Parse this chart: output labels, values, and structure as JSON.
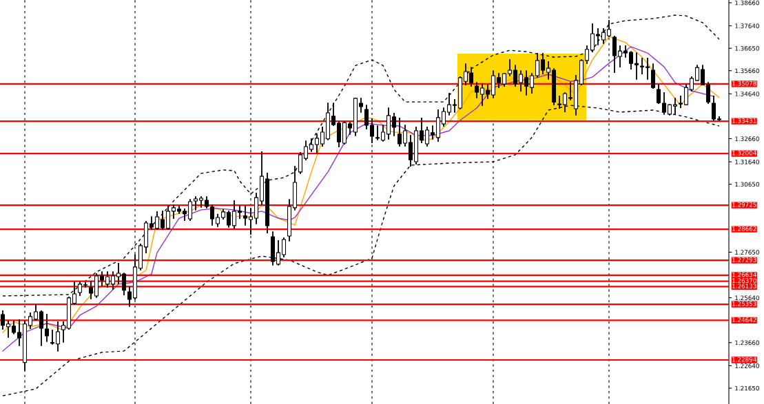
{
  "chart_data": {
    "type": "candlestick",
    "categories": [
      null,
      null,
      null,
      null,
      null,
      null,
      null,
      null,
      null,
      null,
      null,
      null,
      null,
      null,
      null,
      null,
      null,
      null,
      null,
      null,
      null,
      null,
      null,
      null,
      null,
      null,
      null,
      null,
      null,
      null,
      null,
      null,
      null,
      null,
      null,
      null,
      null,
      null,
      null,
      null,
      null,
      null,
      null,
      null,
      null,
      null,
      null,
      null,
      null,
      null,
      null,
      null,
      null,
      null,
      null,
      null,
      null,
      null,
      null,
      null,
      null,
      null,
      null,
      null,
      null,
      null,
      null,
      null,
      null,
      null,
      null,
      null,
      null,
      null,
      null,
      null,
      null,
      null,
      null,
      null,
      null,
      null,
      null,
      null,
      null,
      null,
      null,
      null,
      null,
      null,
      null,
      null,
      null,
      null,
      null,
      null,
      null,
      null,
      null,
      null,
      null,
      null,
      null,
      null,
      null,
      null,
      null,
      null,
      null,
      null,
      null,
      null,
      null,
      null,
      null,
      null,
      null,
      null,
      null,
      null,
      null,
      null,
      null,
      null,
      null,
      null,
      null,
      null,
      null,
      null,
      null
    ],
    "ohlc": [
      [
        1.249,
        1.2505,
        1.2426,
        1.2442
      ],
      [
        1.2436,
        1.246,
        1.239,
        1.2448
      ],
      [
        1.2439,
        1.246,
        1.2405,
        1.2411
      ],
      [
        1.2411,
        1.2466,
        1.2354,
        1.2387
      ],
      [
        1.2278,
        1.246,
        1.2244,
        1.2448
      ],
      [
        1.2442,
        1.2496,
        1.2429,
        1.2481
      ],
      [
        1.2469,
        1.2533,
        1.2466,
        1.2502
      ],
      [
        1.2502,
        1.2505,
        1.2354,
        1.2429
      ],
      [
        1.2426,
        1.249,
        1.2372,
        1.2396
      ],
      [
        1.2366,
        1.242,
        1.236,
        1.2363
      ],
      [
        1.236,
        1.2457,
        1.2329,
        1.2414
      ],
      [
        1.2423,
        1.2457,
        1.2369,
        1.2442
      ],
      [
        1.2429,
        1.2566,
        1.2426,
        1.2563
      ],
      [
        1.2539,
        1.2633,
        1.2536,
        1.2581
      ],
      [
        1.2587,
        1.2633,
        1.2575,
        1.2624
      ],
      [
        1.2621,
        1.263,
        1.2612,
        1.262
      ],
      [
        1.2609,
        1.2636,
        1.256,
        1.2584
      ],
      [
        1.2572,
        1.2669,
        1.2566,
        1.266
      ],
      [
        1.266,
        1.2678,
        1.2618,
        1.2642
      ],
      [
        1.2624,
        1.2678,
        1.2612,
        1.2657
      ],
      [
        1.2624,
        1.2678,
        1.2603,
        1.266
      ],
      [
        1.2657,
        1.2715,
        1.2627,
        1.2672
      ],
      [
        1.2669,
        1.2672,
        1.2578,
        1.2597
      ],
      [
        1.259,
        1.2612,
        1.2527,
        1.2557
      ],
      [
        1.2563,
        1.2754,
        1.2557,
        1.27
      ],
      [
        1.2694,
        1.28,
        1.2688,
        1.2794
      ],
      [
        1.2788,
        1.29,
        1.2763,
        1.2894
      ],
      [
        1.2891,
        1.2921,
        1.2867,
        1.2876
      ],
      [
        1.287,
        1.2943,
        1.2867,
        1.2921
      ],
      [
        1.2909,
        1.2946,
        1.2867,
        1.2873
      ],
      [
        1.287,
        1.2967,
        1.2867,
        1.2946
      ],
      [
        1.2946,
        1.2973,
        1.2915,
        1.2961
      ],
      [
        1.2955,
        1.2967,
        1.2937,
        1.2946
      ],
      [
        1.2946,
        1.2955,
        1.2906,
        1.2934
      ],
      [
        1.2912,
        1.2997,
        1.2906,
        1.2988
      ],
      [
        1.2991,
        1.3009,
        1.2952,
        1.3
      ],
      [
        1.2994,
        1.3009,
        1.2964,
        1.3003
      ],
      [
        1.2994,
        1.3009,
        1.2961,
        1.2967
      ],
      [
        1.2964,
        1.2973,
        1.2885,
        1.2912
      ],
      [
        1.2891,
        1.2931,
        1.2879,
        1.2918
      ],
      [
        1.2918,
        1.2952,
        1.2912,
        1.2943
      ],
      [
        1.294,
        1.2946,
        1.2876,
        1.2885
      ],
      [
        1.2882,
        1.2991,
        1.287,
        1.2946
      ],
      [
        1.2946,
        1.2967,
        1.2915,
        1.294
      ],
      [
        1.2925,
        1.2967,
        1.2885,
        1.2915
      ],
      [
        1.2909,
        1.2958,
        1.2845,
        1.2921
      ],
      [
        1.2915,
        1.3025,
        1.2891,
        1.3006
      ],
      [
        1.2991,
        1.3207,
        1.2976,
        1.31
      ],
      [
        1.3088,
        1.3113,
        1.2851,
        1.2882
      ],
      [
        1.2833,
        1.2854,
        1.2709,
        1.2724
      ],
      [
        1.2712,
        1.2815,
        1.2709,
        1.2763
      ],
      [
        1.2754,
        1.2827,
        1.2745,
        1.2821
      ],
      [
        1.2836,
        1.2997,
        1.2815,
        1.2967
      ],
      [
        1.2961,
        1.3143,
        1.2952,
        1.3073
      ],
      [
        1.3119,
        1.3204,
        1.3113,
        1.3195
      ],
      [
        1.3179,
        1.3255,
        1.3173,
        1.3231
      ],
      [
        1.3219,
        1.3265,
        1.321,
        1.324
      ],
      [
        1.324,
        1.3286,
        1.3204,
        1.3268
      ],
      [
        1.3243,
        1.3316,
        1.3234,
        1.3295
      ],
      [
        1.3265,
        1.3422,
        1.3262,
        1.338
      ],
      [
        1.3365,
        1.3422,
        1.3325,
        1.3328
      ],
      [
        1.3334,
        1.334,
        1.3231,
        1.3252
      ],
      [
        1.3246,
        1.334,
        1.3243,
        1.3337
      ],
      [
        1.3331,
        1.3337,
        1.3286,
        1.3313
      ],
      [
        1.3295,
        1.3444,
        1.328,
        1.3444
      ],
      [
        1.3422,
        1.3444,
        1.3383,
        1.3407
      ],
      [
        1.3395,
        1.3413,
        1.331,
        1.3325
      ],
      [
        1.3325,
        1.3353,
        1.3249,
        1.3277
      ],
      [
        1.3271,
        1.3322,
        1.3262,
        1.3268
      ],
      [
        1.3259,
        1.3325,
        1.3256,
        1.3295
      ],
      [
        1.3286,
        1.3401,
        1.3265,
        1.3368
      ],
      [
        1.3362,
        1.3377,
        1.328,
        1.3316
      ],
      [
        1.3286,
        1.3356,
        1.3234,
        1.3243
      ],
      [
        1.3246,
        1.3325,
        1.3234,
        1.3301
      ],
      [
        1.3249,
        1.328,
        1.3146,
        1.3173
      ],
      [
        1.3164,
        1.3316,
        1.3155,
        1.3301
      ],
      [
        1.3301,
        1.3356,
        1.3249,
        1.3259
      ],
      [
        1.3243,
        1.3316,
        1.3234,
        1.3304
      ],
      [
        1.3292,
        1.3322,
        1.3265,
        1.3283
      ],
      [
        1.3271,
        1.3392,
        1.3255,
        1.3359
      ],
      [
        1.3331,
        1.3401,
        1.3322,
        1.3386
      ],
      [
        1.3383,
        1.3465,
        1.3371,
        1.3416
      ],
      [
        1.3416,
        1.3438,
        1.3383,
        1.3413
      ],
      [
        1.3401,
        1.3538,
        1.3398,
        1.3535
      ],
      [
        1.3519,
        1.3595,
        1.3504,
        1.3562
      ],
      [
        1.3556,
        1.358,
        1.3498,
        1.3513
      ],
      [
        1.3498,
        1.3513,
        1.3447,
        1.3471
      ],
      [
        1.3462,
        1.3507,
        1.3413,
        1.3489
      ],
      [
        1.348,
        1.3504,
        1.3444,
        1.3462
      ],
      [
        1.3459,
        1.3565,
        1.3447,
        1.3544
      ],
      [
        1.3535,
        1.3553,
        1.3492,
        1.3513
      ],
      [
        1.3507,
        1.3553,
        1.3498,
        1.3553
      ],
      [
        1.3553,
        1.3614,
        1.3544,
        1.3568
      ],
      [
        1.3568,
        1.3589,
        1.3498,
        1.3507
      ],
      [
        1.3513,
        1.3565,
        1.3477,
        1.355
      ],
      [
        1.3535,
        1.3565,
        1.3459,
        1.3498
      ],
      [
        1.3492,
        1.3553,
        1.3468,
        1.3544
      ],
      [
        1.3544,
        1.3641,
        1.3538,
        1.3611
      ],
      [
        1.3614,
        1.3641,
        1.3553,
        1.3568
      ],
      [
        1.3559,
        1.3605,
        1.3529,
        1.3577
      ],
      [
        1.3568,
        1.3574,
        1.3416,
        1.3428
      ],
      [
        1.3419,
        1.3453,
        1.3401,
        1.3416
      ],
      [
        1.3416,
        1.3468,
        1.3386,
        1.3465
      ],
      [
        1.3447,
        1.3513,
        1.3438,
        1.3444
      ],
      [
        1.3398,
        1.3544,
        1.3371,
        1.3523
      ],
      [
        1.3507,
        1.3614,
        1.3504,
        1.3611
      ],
      [
        1.3611,
        1.3675,
        1.3598,
        1.366
      ],
      [
        1.3657,
        1.3772,
        1.365,
        1.3729
      ],
      [
        1.3726,
        1.3751,
        1.3681,
        1.372
      ],
      [
        1.3702,
        1.3751,
        1.3687,
        1.3735
      ],
      [
        1.372,
        1.3787,
        1.3717,
        1.3748
      ],
      [
        1.3714,
        1.3717,
        1.3559,
        1.3632
      ],
      [
        1.3629,
        1.3675,
        1.3583,
        1.3653
      ],
      [
        1.3653,
        1.3675,
        1.3626,
        1.3644
      ],
      [
        1.3647,
        1.365,
        1.3574,
        1.3598
      ],
      [
        1.3598,
        1.3644,
        1.3529,
        1.3592
      ],
      [
        1.3586,
        1.362,
        1.3553,
        1.3583
      ],
      [
        1.3583,
        1.362,
        1.3529,
        1.358
      ],
      [
        1.3568,
        1.3595,
        1.3489,
        1.3492
      ],
      [
        1.3483,
        1.3504,
        1.3422,
        1.3425
      ],
      [
        1.3422,
        1.3468,
        1.3374,
        1.3383
      ],
      [
        1.3374,
        1.3416,
        1.3371,
        1.3416
      ],
      [
        1.341,
        1.3444,
        1.3374,
        1.3416
      ],
      [
        1.3419,
        1.3453,
        1.3404,
        1.3422
      ],
      [
        1.3416,
        1.3504,
        1.3416,
        1.3492
      ],
      [
        1.3483,
        1.3538,
        1.3477,
        1.3532
      ],
      [
        1.3523,
        1.3589,
        1.3523,
        1.358
      ],
      [
        1.3571,
        1.3589,
        1.3504,
        1.3504
      ],
      [
        1.3504,
        1.3513,
        1.3422,
        1.3428
      ],
      [
        1.3422,
        1.3453,
        1.3347,
        1.3353
      ],
      [
        1.3353,
        1.3362,
        1.3347,
        1.335
      ]
    ],
    "series": [
      {
        "type": "line",
        "color": "#ffa500",
        "line_style": "solid",
        "values": [
          1.2411,
          null,
          1.2457,
          null,
          null,
          1.2436,
          null,
          null,
          1.2451,
          null,
          null,
          1.242,
          1.2451,
          null,
          1.2521,
          null,
          null,
          1.2603,
          null,
          1.2624,
          1.2624,
          null,
          null,
          1.2627,
          1.2654,
          null,
          1.2685,
          null,
          1.2906,
          null,
          null,
          null,
          1.2937,
          null,
          1.2946,
          null,
          1.2973,
          null,
          1.2967,
          null,
          1.2946,
          null,
          1.2921,
          null,
          1.2927,
          1.2915,
          null,
          1.2973,
          1.2967,
          null,
          1.2915,
          null,
          null,
          1.2885,
          null,
          null,
          1.3119,
          null,
          1.3262,
          null,
          null,
          1.3304,
          null,
          1.3322,
          null,
          null,
          1.3362,
          null,
          1.3347,
          null,
          1.3301,
          1.3295,
          null,
          null,
          1.3292,
          null,
          1.3259,
          null,
          1.3265,
          null,
          null,
          1.3341,
          null,
          1.3401,
          null,
          1.3474,
          null,
          null,
          null,
          1.3492,
          null,
          null,
          null,
          1.3538,
          null,
          null,
          null,
          1.3544,
          null,
          1.3553,
          null,
          null,
          1.3504,
          null,
          1.3459,
          null,
          1.3565,
          1.3614,
          null,
          null,
          1.3717,
          null,
          null,
          1.369,
          null,
          null,
          1.3626,
          null,
          1.3568,
          null,
          null,
          1.3474,
          null,
          1.3413,
          1.3444,
          null,
          null,
          1.3507,
          null,
          null,
          1.3447
        ]
      },
      {
        "type": "line",
        "color": "#9932cc",
        "line_style": "solid",
        "values": [
          1.2329,
          null,
          null,
          null,
          1.2411,
          null,
          null,
          null,
          1.2451,
          null,
          null,
          null,
          1.2429,
          null,
          1.2487,
          null,
          null,
          1.2527,
          null,
          null,
          null,
          1.2624,
          null,
          null,
          1.2633,
          null,
          null,
          1.2669,
          1.2763,
          null,
          null,
          null,
          1.2915,
          null,
          null,
          null,
          1.2952,
          null,
          null,
          1.2958,
          null,
          null,
          1.2952,
          null,
          null,
          1.2937,
          null,
          1.2946,
          null,
          null,
          1.2915,
          null,
          1.2906,
          1.2918,
          null,
          null,
          null,
          null,
          null,
          1.3119,
          null,
          null,
          null,
          1.3292,
          null,
          null,
          1.3334,
          null,
          null,
          1.3325,
          null,
          null,
          1.3322,
          null,
          null,
          1.328,
          null,
          null,
          1.328,
          null,
          null,
          1.3301,
          null,
          1.3347,
          null,
          null,
          1.3401,
          null,
          null,
          1.3492,
          null,
          null,
          null,
          1.3519,
          null,
          null,
          null,
          1.3535,
          null,
          1.355,
          null,
          null,
          null,
          1.3519,
          null,
          1.3523,
          null,
          1.3538,
          null,
          null,
          1.3599,
          null,
          null,
          null,
          1.3672,
          null,
          null,
          1.3644,
          null,
          null,
          1.3583,
          null,
          1.3513,
          null,
          null,
          1.3477,
          null,
          null,
          null,
          1.3453,
          null
        ]
      },
      {
        "type": "line",
        "color": "#000000",
        "line_style": "dashed",
        "values": [
          1.2572,
          null,
          null,
          null,
          null,
          null,
          null,
          null,
          null,
          null,
          null,
          null,
          1.2578,
          null,
          null,
          null,
          null,
          1.2678,
          null,
          null,
          null,
          null,
          1.2739,
          null,
          null,
          null,
          null,
          null,
          null,
          null,
          null,
          1.2991,
          null,
          null,
          null,
          null,
          1.3113,
          null,
          null,
          null,
          1.3128,
          null,
          1.3125,
          1.3079,
          null,
          1.3022,
          null,
          null,
          1.3082,
          null,
          null,
          1.3094,
          null,
          1.3119,
          null,
          null,
          1.3255,
          null,
          null,
          1.3377,
          null,
          null,
          1.3498,
          null,
          1.3589,
          null,
          null,
          1.3614,
          null,
          1.3589,
          null,
          1.3483,
          null,
          1.3428,
          null,
          null,
          null,
          null,
          null,
          null,
          1.3428,
          null,
          null,
          null,
          null,
          1.3574,
          null,
          null,
          null,
          1.3635,
          null,
          null,
          1.3656,
          null,
          null,
          1.365,
          null,
          null,
          1.3635,
          null,
          1.3626,
          null,
          null,
          null,
          1.3629,
          null,
          null,
          1.3656,
          null,
          null,
          1.3772,
          null,
          null,
          1.3787,
          null,
          null,
          null,
          null,
          1.3796,
          null,
          null,
          null,
          1.3811,
          null,
          1.3808,
          null,
          null,
          1.3778,
          null,
          null,
          1.3705
        ]
      },
      {
        "type": "line",
        "color": "#000000",
        "line_style": "dashed",
        "values": [
          1.2131,
          null,
          null,
          null,
          null,
          null,
          1.2162,
          null,
          null,
          null,
          null,
          null,
          1.2284,
          null,
          null,
          null,
          null,
          null,
          1.2323,
          null,
          null,
          null,
          1.2329,
          null,
          1.2369,
          null,
          null,
          null,
          null,
          null,
          null,
          1.2511,
          null,
          null,
          null,
          null,
          null,
          1.2633,
          null,
          null,
          null,
          null,
          1.2715,
          null,
          null,
          null,
          null,
          1.2748,
          null,
          null,
          null,
          null,
          1.273,
          null,
          null,
          null,
          null,
          1.2678,
          null,
          1.2663,
          null,
          null,
          null,
          null,
          1.2709,
          null,
          null,
          1.2739,
          null,
          1.2906,
          null,
          1.3058,
          null,
          null,
          1.3149,
          null,
          null,
          null,
          null,
          null,
          null,
          1.3158,
          null,
          null,
          null,
          null,
          null,
          null,
          null,
          1.3164,
          null,
          null,
          null,
          1.3195,
          null,
          null,
          1.3271,
          null,
          null,
          1.3392,
          null,
          null,
          null,
          1.3413,
          null,
          null,
          null,
          null,
          1.3401,
          null,
          null,
          null,
          1.3383,
          null,
          null,
          null,
          null,
          null,
          1.3392,
          null,
          null,
          null,
          null,
          null,
          1.3362,
          null,
          null,
          null,
          null,
          null,
          1.3322
        ]
      }
    ],
    "ylim": [
      1.2095,
      1.3878
    ],
    "yticks": [
      {
        "value": 1.3866,
        "label": "1.38660"
      },
      {
        "value": 1.3764,
        "label": "1.37640"
      },
      {
        "value": 1.3665,
        "label": "1.36650"
      },
      {
        "value": 1.3566,
        "label": "1.35660"
      },
      {
        "value": 1.3464,
        "label": "1.34640"
      },
      {
        "value": 1.3266,
        "label": "1.32660"
      },
      {
        "value": 1.3164,
        "label": "1.31640"
      },
      {
        "value": 1.3065,
        "label": "1.30650"
      },
      {
        "value": 1.2765,
        "label": "1.27650"
      },
      {
        "value": 1.2564,
        "label": "1.25640"
      },
      {
        "value": 1.2366,
        "label": "1.23660"
      },
      {
        "value": 1.2264,
        "label": "1.22640"
      },
      {
        "value": 1.2165,
        "label": "1.21650"
      }
    ],
    "ref_lines": [
      {
        "axis": "y",
        "value": 1.35078,
        "label": "1.35078",
        "color": "#ff0000"
      },
      {
        "axis": "y",
        "value": 1.33431,
        "label": "1.33431",
        "color": "#ff0000"
      },
      {
        "axis": "y",
        "value": 1.32004,
        "label": "1.32004",
        "color": "#ff0000"
      },
      {
        "axis": "y",
        "value": 1.29725,
        "label": "1.29725",
        "color": "#ff0000"
      },
      {
        "axis": "y",
        "value": 1.28662,
        "label": "1.28662",
        "color": "#ff0000"
      },
      {
        "axis": "y",
        "value": 1.27293,
        "label": "1.27293",
        "color": "#ff0000"
      },
      {
        "axis": "y",
        "value": 1.26634,
        "label": "1.26634",
        "color": "#ff0000"
      },
      {
        "axis": "y",
        "value": 1.2637,
        "label": "1.26370",
        "color": "#ff0000"
      },
      {
        "axis": "y",
        "value": 1.26133,
        "label": "1.26133",
        "color": "#ff0000"
      },
      {
        "axis": "y",
        "value": 1.25353,
        "label": "1.25353",
        "color": "#ff0000"
      },
      {
        "axis": "y",
        "value": 1.24642,
        "label": "1.24642",
        "color": "#ff0000"
      },
      {
        "axis": "y",
        "value": 1.22894,
        "label": "1.22894",
        "color": "#ff0000"
      }
    ],
    "tick_labels": "y",
    "grid": false,
    "legend": false
  }
}
